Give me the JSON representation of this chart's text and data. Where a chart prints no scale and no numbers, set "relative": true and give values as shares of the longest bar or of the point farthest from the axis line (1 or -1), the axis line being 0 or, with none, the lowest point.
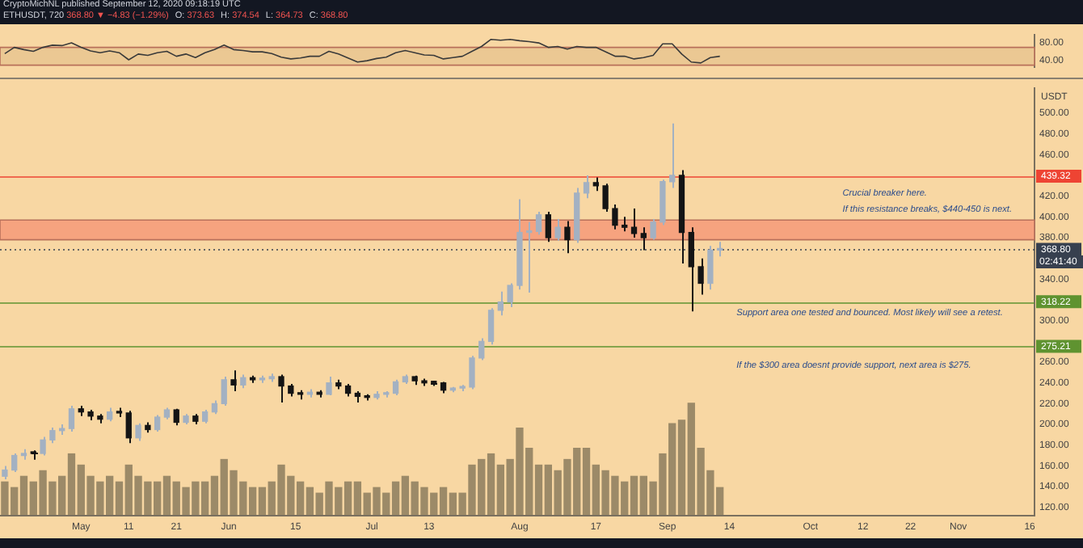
{
  "chart_data": [
    {
      "type": "line",
      "x": [
        "2020-04-15",
        "2020-04-17",
        "2020-04-19",
        "2020-04-21",
        "2020-04-23",
        "2020-04-25",
        "2020-04-27",
        "2020-04-29",
        "2020-05-01",
        "2020-05-03",
        "2020-05-05",
        "2020-05-07",
        "2020-05-09",
        "2020-05-11",
        "2020-05-13",
        "2020-05-15",
        "2020-05-17",
        "2020-05-19",
        "2020-05-21",
        "2020-05-23",
        "2020-05-25",
        "2020-05-27",
        "2020-05-29",
        "2020-05-31",
        "2020-06-02",
        "2020-06-04",
        "2020-06-06",
        "2020-06-08",
        "2020-06-10",
        "2020-06-12",
        "2020-06-14",
        "2020-06-16",
        "2020-06-18",
        "2020-06-20",
        "2020-06-22",
        "2020-06-24",
        "2020-06-26",
        "2020-06-28",
        "2020-06-30",
        "2020-07-02",
        "2020-07-04",
        "2020-07-06",
        "2020-07-08",
        "2020-07-10",
        "2020-07-12",
        "2020-07-14",
        "2020-07-16",
        "2020-07-18",
        "2020-07-20",
        "2020-07-22",
        "2020-07-24",
        "2020-07-26",
        "2020-07-28",
        "2020-07-30",
        "2020-08-01",
        "2020-08-03",
        "2020-08-05",
        "2020-08-07",
        "2020-08-09",
        "2020-08-11",
        "2020-08-13",
        "2020-08-15",
        "2020-08-17",
        "2020-08-19",
        "2020-08-21",
        "2020-08-23",
        "2020-08-25",
        "2020-08-27",
        "2020-08-29",
        "2020-08-31",
        "2020-09-02",
        "2020-09-04",
        "2020-09-06",
        "2020-09-08",
        "2020-09-10",
        "2020-09-12"
      ],
      "values": [
        56,
        70,
        65,
        61,
        70,
        75,
        74,
        80,
        70,
        62,
        58,
        62,
        58,
        42,
        55,
        52,
        58,
        61,
        50,
        55,
        47,
        58,
        65,
        75,
        65,
        63,
        60,
        60,
        56,
        48,
        44,
        46,
        50,
        50,
        61,
        55,
        46,
        37,
        40,
        45,
        48,
        58,
        63,
        58,
        53,
        52,
        44,
        47,
        50,
        61,
        72,
        88,
        86,
        88,
        85,
        83,
        80,
        70,
        72,
        66,
        72,
        70,
        70,
        60,
        50,
        50,
        44,
        47,
        52,
        78,
        78,
        55,
        37,
        35,
        47,
        50
      ],
      "color": "#3a3a3a",
      "marker": "none",
      "xlim": [
        "2020-04-14",
        "2020-11-17"
      ],
      "ylim": [
        26,
        98
      ],
      "yticks": [
        {
          "value": 80,
          "label": "80.00"
        },
        {
          "value": 40,
          "label": "40.00"
        }
      ],
      "bands": [
        {
          "axis": "y",
          "from": 30,
          "to": 70,
          "color": "#ebc893"
        }
      ],
      "tick_labels": "y",
      "title": "ETHUSDT, 720",
      "subtitle": "CryptoMichNL published September 12, 2020 09:18:19 UTC",
      "annotations": [
        "368.80 ▼ −4.83 (−1.29%)",
        "O: 373.63",
        "H: 374.54",
        "L: 364.73",
        "C: 368.80"
      ]
    },
    {
      "type": "candlestick",
      "ylabel": "USDT",
      "x": [
        "2020-04-15",
        "2020-04-17",
        "2020-04-19",
        "2020-04-21",
        "2020-04-23",
        "2020-04-25",
        "2020-04-27",
        "2020-04-29",
        "2020-05-01",
        "2020-05-03",
        "2020-05-05",
        "2020-05-07",
        "2020-05-09",
        "2020-05-11",
        "2020-05-13",
        "2020-05-15",
        "2020-05-17",
        "2020-05-19",
        "2020-05-21",
        "2020-05-23",
        "2020-05-25",
        "2020-05-27",
        "2020-05-29",
        "2020-05-31",
        "2020-06-02",
        "2020-06-04",
        "2020-06-06",
        "2020-06-08",
        "2020-06-10",
        "2020-06-12",
        "2020-06-14",
        "2020-06-16",
        "2020-06-18",
        "2020-06-20",
        "2020-06-22",
        "2020-06-24",
        "2020-06-26",
        "2020-06-28",
        "2020-06-30",
        "2020-07-02",
        "2020-07-04",
        "2020-07-06",
        "2020-07-08",
        "2020-07-10",
        "2020-07-12",
        "2020-07-14",
        "2020-07-16",
        "2020-07-18",
        "2020-07-20",
        "2020-07-22",
        "2020-07-24",
        "2020-07-26",
        "2020-07-28",
        "2020-07-30",
        "2020-08-01",
        "2020-08-03",
        "2020-08-05",
        "2020-08-07",
        "2020-08-09",
        "2020-08-11",
        "2020-08-13",
        "2020-08-15",
        "2020-08-17",
        "2020-08-19",
        "2020-08-21",
        "2020-08-23",
        "2020-08-25",
        "2020-08-27",
        "2020-08-29",
        "2020-08-31",
        "2020-09-02",
        "2020-09-04",
        "2020-09-06",
        "2020-09-08",
        "2020-09-10",
        "2020-09-12"
      ],
      "ohlc": [
        [
          150,
          160,
          147,
          156
        ],
        [
          156,
          172,
          154,
          170
        ],
        [
          170,
          176,
          166,
          172
        ],
        [
          172,
          175,
          166,
          172
        ],
        [
          172,
          188,
          170,
          185
        ],
        [
          185,
          197,
          182,
          194
        ],
        [
          194,
          200,
          190,
          196
        ],
        [
          196,
          218,
          193,
          215
        ],
        [
          215,
          218,
          208,
          212
        ],
        [
          212,
          214,
          204,
          208
        ],
        [
          208,
          210,
          201,
          205
        ],
        [
          205,
          216,
          203,
          212
        ],
        [
          212,
          216,
          207,
          211
        ],
        [
          211,
          213,
          182,
          187
        ],
        [
          187,
          201,
          184,
          199
        ],
        [
          199,
          202,
          192,
          195
        ],
        [
          195,
          209,
          193,
          207
        ],
        [
          207,
          216,
          205,
          214
        ],
        [
          214,
          215,
          199,
          202
        ],
        [
          202,
          210,
          200,
          208
        ],
        [
          208,
          210,
          200,
          203
        ],
        [
          203,
          214,
          201,
          212
        ],
        [
          212,
          223,
          210,
          220
        ],
        [
          220,
          246,
          218,
          243
        ],
        [
          243,
          252,
          232,
          238
        ],
        [
          238,
          248,
          235,
          245
        ],
        [
          245,
          247,
          240,
          243
        ],
        [
          243,
          247,
          240,
          244
        ],
        [
          244,
          249,
          241,
          246
        ],
        [
          246,
          248,
          221,
          237
        ],
        [
          237,
          239,
          227,
          230
        ],
        [
          230,
          233,
          224,
          229
        ],
        [
          229,
          234,
          226,
          231
        ],
        [
          231,
          233,
          226,
          229
        ],
        [
          229,
          246,
          228,
          240
        ],
        [
          240,
          243,
          234,
          237
        ],
        [
          237,
          239,
          227,
          230
        ],
        [
          230,
          232,
          221,
          227
        ],
        [
          227,
          229,
          223,
          226
        ],
        [
          226,
          232,
          224,
          229
        ],
        [
          229,
          232,
          226,
          230
        ],
        [
          230,
          243,
          228,
          241
        ],
        [
          241,
          248,
          239,
          246
        ],
        [
          246,
          247,
          238,
          242
        ],
        [
          242,
          244,
          237,
          240
        ],
        [
          240,
          242,
          237,
          240
        ],
        [
          240,
          241,
          230,
          233
        ],
        [
          233,
          236,
          231,
          235
        ],
        [
          235,
          238,
          232,
          236
        ],
        [
          236,
          266,
          234,
          264
        ],
        [
          264,
          283,
          262,
          280
        ],
        [
          280,
          312,
          277,
          310
        ],
        [
          310,
          328,
          305,
          318
        ],
        [
          318,
          336,
          313,
          334
        ],
        [
          334,
          417,
          330,
          385
        ],
        [
          385,
          395,
          327,
          386
        ],
        [
          386,
          405,
          383,
          402
        ],
        [
          402,
          405,
          376,
          380
        ],
        [
          380,
          398,
          377,
          390
        ],
        [
          390,
          396,
          365,
          378
        ],
        [
          378,
          428,
          375,
          423
        ],
        [
          423,
          440,
          418,
          433
        ],
        [
          433,
          438,
          425,
          430
        ],
        [
          430,
          432,
          405,
          408
        ],
        [
          408,
          412,
          388,
          392
        ],
        [
          392,
          400,
          386,
          390
        ],
        [
          390,
          408,
          380,
          384
        ],
        [
          384,
          390,
          368,
          380
        ],
        [
          380,
          398,
          378,
          395
        ],
        [
          395,
          436,
          392,
          434
        ],
        [
          434,
          490,
          428,
          440
        ],
        [
          440,
          445,
          355,
          385
        ],
        [
          385,
          390,
          309,
          352
        ],
        [
          352,
          360,
          325,
          336
        ],
        [
          336,
          372,
          330,
          368
        ],
        [
          368,
          376,
          362,
          368.8
        ]
      ],
      "colors": [
        "#a3b1c2",
        "#a3b1c2",
        "#a3b1c2",
        "#141414",
        "#a3b1c2",
        "#a3b1c2",
        "#a3b1c2",
        "#a3b1c2",
        "#141414",
        "#141414",
        "#141414",
        "#a3b1c2",
        "#141414",
        "#141414",
        "#a3b1c2",
        "#141414",
        "#a3b1c2",
        "#a3b1c2",
        "#141414",
        "#a3b1c2",
        "#141414",
        "#a3b1c2",
        "#a3b1c2",
        "#a3b1c2",
        "#141414",
        "#a3b1c2",
        "#141414",
        "#a3b1c2",
        "#a3b1c2",
        "#141414",
        "#141414",
        "#141414",
        "#a3b1c2",
        "#141414",
        "#a3b1c2",
        "#141414",
        "#141414",
        "#141414",
        "#141414",
        "#a3b1c2",
        "#a3b1c2",
        "#a3b1c2",
        "#a3b1c2",
        "#141414",
        "#141414",
        "#141414",
        "#141414",
        "#a3b1c2",
        "#a3b1c2",
        "#a3b1c2",
        "#a3b1c2",
        "#a3b1c2",
        "#a3b1c2",
        "#a3b1c2",
        "#a3b1c2",
        "#a3b1c2",
        "#a3b1c2",
        "#141414",
        "#a3b1c2",
        "#141414",
        "#a3b1c2",
        "#a3b1c2",
        "#141414",
        "#141414",
        "#141414",
        "#141414",
        "#141414",
        "#141414",
        "#a3b1c2",
        "#a3b1c2",
        "#a3b1c2",
        "#141414",
        "#141414",
        "#141414",
        "#a3b1c2",
        "#a3b1c2"
      ],
      "xlim": [
        "2020-04-14",
        "2020-11-17"
      ],
      "xticks": [
        {
          "value": "2020-05-01",
          "label": "May"
        },
        {
          "value": "2020-05-11",
          "label": "11"
        },
        {
          "value": "2020-05-21",
          "label": "21"
        },
        {
          "value": "2020-06-01",
          "label": "Jun"
        },
        {
          "value": "2020-06-15",
          "label": "15"
        },
        {
          "value": "2020-07-01",
          "label": "Jul"
        },
        {
          "value": "2020-07-13",
          "label": "13"
        },
        {
          "value": "2020-08-01",
          "label": "Aug"
        },
        {
          "value": "2020-08-17",
          "label": "17"
        },
        {
          "value": "2020-09-01",
          "label": "Sep"
        },
        {
          "value": "2020-09-14",
          "label": "14"
        },
        {
          "value": "2020-10-01",
          "label": "Oct"
        },
        {
          "value": "2020-10-12",
          "label": "12"
        },
        {
          "value": "2020-10-22",
          "label": "22"
        },
        {
          "value": "2020-11-01",
          "label": "Nov"
        },
        {
          "value": "2020-11-16",
          "label": "16"
        }
      ],
      "ylim": [
        112,
        524
      ],
      "yticks": [
        {
          "value": 120,
          "label": "120.00"
        },
        {
          "value": 140,
          "label": "140.00"
        },
        {
          "value": 160,
          "label": "160.00"
        },
        {
          "value": 180,
          "label": "180.00"
        },
        {
          "value": 200,
          "label": "200.00"
        },
        {
          "value": 220,
          "label": "220.00"
        },
        {
          "value": 240,
          "label": "240.00"
        },
        {
          "value": 260,
          "label": "260.00"
        },
        {
          "value": 300,
          "label": "300.00"
        },
        {
          "value": 340,
          "label": "340.00"
        },
        {
          "value": 380,
          "label": "380.00"
        },
        {
          "value": 400,
          "label": "400.00"
        },
        {
          "value": 420,
          "label": "420.00"
        },
        {
          "value": 460,
          "label": "460.00"
        },
        {
          "value": 480,
          "label": "480.00"
        },
        {
          "value": 500,
          "label": "500.00"
        }
      ],
      "ref_lines": [
        {
          "axis": "y",
          "value": 439.32,
          "label": "439.32",
          "color": "#ee4433"
        },
        {
          "axis": "y",
          "value": 368.8,
          "label": "368.80",
          "color": "#37404f",
          "line_style": "dotted"
        },
        {
          "axis": "y",
          "value": 318.22,
          "label": "318.22",
          "color": "#5f9330"
        },
        {
          "axis": "y",
          "value": 275.21,
          "label": "275.21",
          "color": "#5f9330"
        }
      ],
      "bands": [
        {
          "axis": "y",
          "from": 378,
          "to": 397,
          "color": "#f6a37f"
        }
      ],
      "annotations": [
        "02:41:40",
        "Crucial breaker here.",
        "If this resistance breaks, $440-450 is next.",
        "Support area one tested and bounced. Most likely will see a retest.",
        "If the $300 area doesnt provide support, next area is $275."
      ]
    },
    {
      "type": "bar",
      "relative": true,
      "x": [
        "2020-04-15",
        "2020-04-17",
        "2020-04-19",
        "2020-04-21",
        "2020-04-23",
        "2020-04-25",
        "2020-04-27",
        "2020-04-29",
        "2020-05-01",
        "2020-05-03",
        "2020-05-05",
        "2020-05-07",
        "2020-05-09",
        "2020-05-11",
        "2020-05-13",
        "2020-05-15",
        "2020-05-17",
        "2020-05-19",
        "2020-05-21",
        "2020-05-23",
        "2020-05-25",
        "2020-05-27",
        "2020-05-29",
        "2020-05-31",
        "2020-06-02",
        "2020-06-04",
        "2020-06-06",
        "2020-06-08",
        "2020-06-10",
        "2020-06-12",
        "2020-06-14",
        "2020-06-16",
        "2020-06-18",
        "2020-06-20",
        "2020-06-22",
        "2020-06-24",
        "2020-06-26",
        "2020-06-28",
        "2020-06-30",
        "2020-07-02",
        "2020-07-04",
        "2020-07-06",
        "2020-07-08",
        "2020-07-10",
        "2020-07-12",
        "2020-07-14",
        "2020-07-16",
        "2020-07-18",
        "2020-07-20",
        "2020-07-22",
        "2020-07-24",
        "2020-07-26",
        "2020-07-28",
        "2020-07-30",
        "2020-08-01",
        "2020-08-03",
        "2020-08-05",
        "2020-08-07",
        "2020-08-09",
        "2020-08-11",
        "2020-08-13",
        "2020-08-15",
        "2020-08-17",
        "2020-08-19",
        "2020-08-21",
        "2020-08-23",
        "2020-08-25",
        "2020-08-27",
        "2020-08-29",
        "2020-08-31",
        "2020-09-02",
        "2020-09-04",
        "2020-09-06",
        "2020-09-08",
        "2020-09-10",
        "2020-09-12"
      ],
      "values": [
        0.3,
        0.25,
        0.35,
        0.3,
        0.4,
        0.3,
        0.35,
        0.55,
        0.45,
        0.35,
        0.3,
        0.35,
        0.3,
        0.45,
        0.35,
        0.3,
        0.3,
        0.35,
        0.3,
        0.25,
        0.3,
        0.3,
        0.35,
        0.5,
        0.4,
        0.3,
        0.25,
        0.25,
        0.3,
        0.45,
        0.35,
        0.3,
        0.25,
        0.2,
        0.3,
        0.25,
        0.3,
        0.3,
        0.2,
        0.25,
        0.2,
        0.3,
        0.35,
        0.3,
        0.25,
        0.2,
        0.25,
        0.2,
        0.2,
        0.45,
        0.5,
        0.55,
        0.45,
        0.5,
        0.78,
        0.6,
        0.45,
        0.45,
        0.4,
        0.5,
        0.6,
        0.6,
        0.45,
        0.4,
        0.35,
        0.3,
        0.35,
        0.35,
        0.3,
        0.55,
        0.82,
        0.85,
        1,
        0.6,
        0.4,
        0.25
      ],
      "color": "#9c8a68",
      "xlim": [
        "2020-04-14",
        "2020-11-17"
      ],
      "tick_labels": false
    }
  ]
}
